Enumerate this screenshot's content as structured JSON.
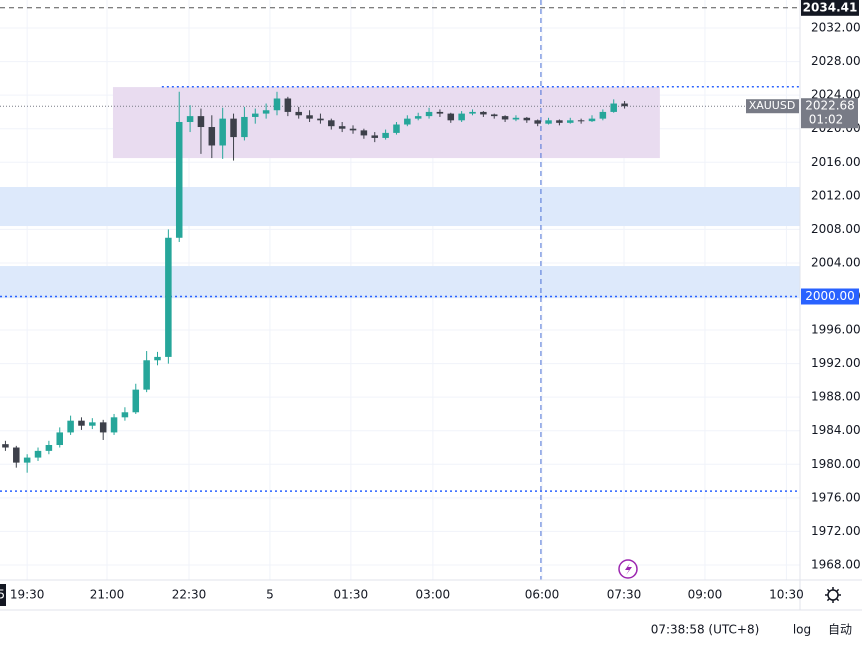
{
  "chart_data": {
    "type": "candlestick",
    "ylim": [
      1966.21,
      2035.34
    ],
    "yticks": [
      {
        "value": 1968,
        "label": "1968.00"
      },
      {
        "value": 1972,
        "label": "1972.00"
      },
      {
        "value": 1976,
        "label": "1976.00"
      },
      {
        "value": 1980,
        "label": "1980.00"
      },
      {
        "value": 1984,
        "label": "1984.00"
      },
      {
        "value": 1988,
        "label": "1988.00"
      },
      {
        "value": 1992,
        "label": "1992.00"
      },
      {
        "value": 1996,
        "label": "1996.00"
      },
      {
        "value": 2000,
        "label": "2000.00"
      },
      {
        "value": 2004,
        "label": "2004.00"
      },
      {
        "value": 2008,
        "label": "2008.00"
      },
      {
        "value": 2012,
        "label": "2012.00"
      },
      {
        "value": 2016,
        "label": "2016.00"
      },
      {
        "value": 2020,
        "label": "2020.00"
      },
      {
        "value": 2024,
        "label": "2024.00"
      },
      {
        "value": 2028,
        "label": "2028.00"
      },
      {
        "value": 2032,
        "label": "2032.00"
      }
    ],
    "xlim": [
      0,
      147.3
    ],
    "xticks": [
      {
        "value": 5,
        "label": "19:30"
      },
      {
        "value": 19.7,
        "label": "21:00"
      },
      {
        "value": 34.8,
        "label": "22:30"
      },
      {
        "value": 49.7,
        "label": "5"
      },
      {
        "value": 64.6,
        "label": "01:30"
      },
      {
        "value": 79.7,
        "label": "03:00"
      },
      {
        "value": 99.8,
        "label": "06:00"
      },
      {
        "value": 114.9,
        "label": "07:30"
      },
      {
        "value": 129.8,
        "label": "09:00"
      },
      {
        "value": 144.8,
        "label": "10:30"
      }
    ],
    "grid": true,
    "up_color": "#26a69a",
    "down_color": "#3d404a",
    "x": [
      1,
      3,
      5,
      7,
      9,
      11,
      13,
      15,
      17,
      19,
      21,
      23,
      25,
      27,
      29,
      31,
      33,
      35,
      37,
      39,
      41,
      43,
      45,
      47,
      49,
      51,
      53,
      55,
      57,
      59,
      61,
      63,
      65,
      67,
      69,
      71,
      73,
      75,
      77,
      79,
      81,
      83,
      85,
      87,
      89,
      91,
      93,
      95,
      97,
      99,
      101,
      103,
      105,
      107,
      109,
      111,
      113,
      115
    ],
    "open": [
      1982.4,
      1982.0,
      1980.2,
      1980.8,
      1981.6,
      1982.3,
      1983.8,
      1985.2,
      1984.6,
      1985.0,
      1983.8,
      1985.6,
      1986.2,
      1988.9,
      1992.4,
      1992.8,
      2007.0,
      2020.8,
      2021.5,
      2020.2,
      2018.0,
      2021.2,
      2019.0,
      2021.4,
      2021.8,
      2022.2,
      2023.6,
      2022.0,
      2021.6,
      2021.2,
      2021.0,
      2020.3,
      2020.0,
      2019.8,
      2019.2,
      2018.9,
      2019.5,
      2020.5,
      2021.2,
      2021.5,
      2022.0,
      2021.8,
      2021.0,
      2021.8,
      2022.0,
      2021.7,
      2021.5,
      2021.1,
      2021.3,
      2021.0,
      2020.6,
      2021.0,
      2020.7,
      2021.0,
      2020.9,
      2021.2,
      2022.0,
      2023.0
    ],
    "high": [
      1982.8,
      1982.2,
      1981.2,
      1982.0,
      1982.8,
      1984.4,
      1985.8,
      1985.6,
      1985.5,
      1985.3,
      1986.0,
      1986.8,
      1989.6,
      1993.5,
      1993.4,
      2008.0,
      2024.4,
      2022.8,
      2022.4,
      2021.6,
      2022.5,
      2021.8,
      2022.6,
      2022.4,
      2023.0,
      2024.4,
      2023.8,
      2022.6,
      2022.2,
      2021.8,
      2021.2,
      2020.8,
      2020.4,
      2020.0,
      2019.6,
      2019.9,
      2020.8,
      2021.6,
      2021.9,
      2022.5,
      2022.3,
      2021.9,
      2022.1,
      2022.3,
      2022.1,
      2021.8,
      2021.6,
      2021.6,
      2021.4,
      2021.1,
      2021.3,
      2021.1,
      2021.3,
      2021.2,
      2021.6,
      2022.3,
      2023.5,
      2023.3
    ],
    "low": [
      1981.6,
      1979.6,
      1979.0,
      1980.4,
      1981.2,
      1982.0,
      1983.5,
      1984.1,
      1984.2,
      1982.9,
      1983.5,
      1985.2,
      1986.0,
      1988.6,
      1991.8,
      1992.0,
      2006.5,
      2019.6,
      2017.0,
      2016.5,
      2016.4,
      2016.2,
      2018.6,
      2020.6,
      2021.2,
      2021.6,
      2021.5,
      2021.2,
      2020.8,
      2020.6,
      2019.9,
      2019.6,
      2019.4,
      2018.8,
      2018.4,
      2018.7,
      2019.3,
      2020.3,
      2021.0,
      2021.2,
      2021.4,
      2020.7,
      2020.8,
      2021.6,
      2021.4,
      2021.2,
      2020.8,
      2020.9,
      2020.7,
      2020.3,
      2020.5,
      2020.4,
      2020.6,
      2020.6,
      2020.8,
      2021.0,
      2021.9,
      2022.4
    ],
    "close": [
      1982.0,
      1980.2,
      1980.8,
      1981.6,
      1982.3,
      1983.8,
      1985.2,
      1984.6,
      1985.0,
      1983.8,
      1985.6,
      1986.2,
      1988.9,
      1992.4,
      1992.8,
      2007.0,
      2020.8,
      2021.5,
      2020.2,
      2018.0,
      2021.2,
      2019.0,
      2021.4,
      2021.8,
      2022.2,
      2023.6,
      2022.0,
      2021.6,
      2021.2,
      2021.0,
      2020.3,
      2020.0,
      2019.8,
      2019.2,
      2018.9,
      2019.5,
      2020.5,
      2021.2,
      2021.5,
      2022.0,
      2021.8,
      2021.0,
      2021.8,
      2022.0,
      2021.7,
      2021.5,
      2021.1,
      2021.3,
      2021.0,
      2020.6,
      2021.0,
      2020.7,
      2021.0,
      2020.9,
      2021.2,
      2022.0,
      2023.0,
      2022.68
    ],
    "zones": [
      {
        "ymin": 2016.5,
        "ymax": 2024.96,
        "xmin": 20.8,
        "xmax": 121.5,
        "color": "#e9dcf0"
      },
      {
        "ymin": 2008.4,
        "ymax": 2013.05,
        "color": "#dde9fb"
      },
      {
        "ymin": 1999.8,
        "ymax": 2003.63,
        "color": "#dde9fb"
      }
    ],
    "hlines": [
      {
        "y": 2025,
        "xmin": 29.8,
        "color": "#2962ff"
      },
      {
        "y": 2000,
        "color": "#2962ff",
        "label": "2000.00"
      },
      {
        "y": 1976.8,
        "color": "#2962ff"
      }
    ],
    "last_price": {
      "value": 2022.68,
      "label": "2022.68",
      "symbol": "XAUUSD",
      "countdown": "01:02",
      "color": "#787b86"
    },
    "crosshair": {
      "x": 99.6,
      "y": 2034.41,
      "y_label": "2034.41"
    },
    "edge_label": "5"
  },
  "toolbar": {
    "time": "07:38:58 (UTC+8)",
    "log": "log",
    "auto": "自动"
  }
}
